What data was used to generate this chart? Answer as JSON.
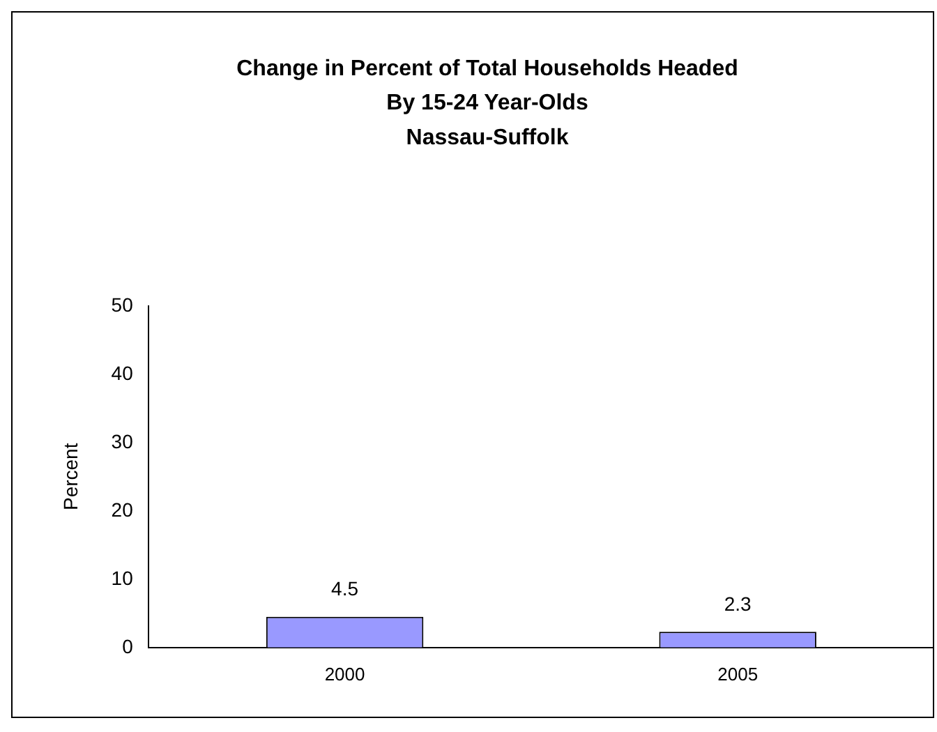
{
  "chart_data": {
    "type": "bar",
    "title": "Change in Percent of Total Households Headed\nBy 15-24 Year-Olds\nNassau-Suffolk",
    "ylabel": "Percent",
    "categories": [
      "2000",
      "2005"
    ],
    "values": [
      4.5,
      2.3
    ],
    "color": "#9999ff",
    "ylim": [
      0,
      50
    ],
    "yticks": [
      0,
      10,
      20,
      30,
      40,
      50
    ],
    "grid": false,
    "legend": false,
    "data_labels": true
  }
}
